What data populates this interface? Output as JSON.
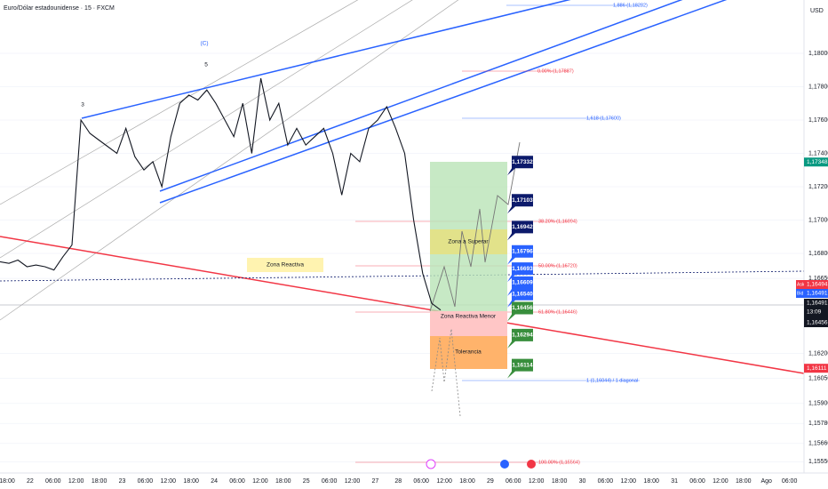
{
  "header": {
    "title": "Euro/Dólar estadounidense · 15 · FXCM",
    "currency": "USD"
  },
  "price_axis": {
    "ylim": [
      1.1836,
      1.1544
    ],
    "ticks": [
      {
        "value": 1.18,
        "label": "1,18000"
      },
      {
        "value": 1.178,
        "label": "1,17800"
      },
      {
        "value": 1.176,
        "label": "1,17600"
      },
      {
        "value": 1.174,
        "label": "1,17400"
      },
      {
        "value": 1.172,
        "label": "1,17200"
      },
      {
        "value": 1.17,
        "label": "1,17000"
      },
      {
        "value": 1.168,
        "label": "1,16800"
      },
      {
        "value": 1.1665,
        "label": "1,16650"
      },
      {
        "value": 1.162,
        "label": "1,16200"
      },
      {
        "value": 1.1605,
        "label": "1,16050"
      },
      {
        "value": 1.159,
        "label": "1,15900"
      },
      {
        "value": 1.1578,
        "label": "1,15780"
      },
      {
        "value": 1.1566,
        "label": "1,15660"
      },
      {
        "value": 1.1555,
        "label": "1,15550"
      }
    ]
  },
  "time_axis": {
    "labels": [
      "18:00",
      "22",
      "06:00",
      "12:00",
      "18:00",
      "23",
      "06:00",
      "12:00",
      "18:00",
      "24",
      "06:00",
      "12:00",
      "18:00",
      "25",
      "06:00",
      "12:00",
      "27",
      "28",
      "06:00",
      "12:00",
      "18:00",
      "29",
      "06:00",
      "12:00",
      "18:00",
      "30",
      "06:00",
      "12:00",
      "18:00",
      "31",
      "06:00",
      "12:00",
      "18:00",
      "Ago",
      "06:00"
    ]
  },
  "price_series": [
    1.1675,
    1.1674,
    1.1676,
    1.1672,
    1.1673,
    1.1672,
    1.167,
    1.1678,
    1.1685,
    1.176,
    1.1752,
    1.1748,
    1.1744,
    1.174,
    1.1755,
    1.1738,
    1.173,
    1.1735,
    1.172,
    1.175,
    1.177,
    1.1775,
    1.1772,
    1.1778,
    1.177,
    1.176,
    1.175,
    1.177,
    1.174,
    1.1785,
    1.176,
    1.177,
    1.1745,
    1.1755,
    1.1745,
    1.175,
    1.1755,
    1.174,
    1.1715,
    1.174,
    1.1735,
    1.1755,
    1.176,
    1.1768,
    1.1755,
    1.174,
    1.17,
    1.1668,
    1.165,
    1.1646
  ],
  "axis_tags": [
    {
      "label": "1,17348",
      "value": 1.17348,
      "color": "#089981"
    },
    {
      "label": "1,16111",
      "value": 1.16111,
      "color": "#f23645"
    }
  ],
  "quote": {
    "ask_label": "Ask",
    "ask": "1,16494",
    "bid_label": "Bid",
    "bid": "1,16491",
    "last": "1,16491",
    "countdown": "13:09",
    "low": "1,16456"
  },
  "level_tags": [
    {
      "label": "1,17332",
      "value": 1.17332,
      "color": "#0c1a6b"
    },
    {
      "label": "1,17103",
      "value": 1.17103,
      "color": "#0c1a6b"
    },
    {
      "label": "1,16942",
      "value": 1.16942,
      "color": "#0c1a6b"
    },
    {
      "label": "1,16796",
      "value": 1.16796,
      "color": "#2962ff"
    },
    {
      "label": "1,16693",
      "value": 1.16693,
      "color": "#2962ff"
    },
    {
      "label": "1,16609",
      "value": 1.16609,
      "color": "#2962ff"
    },
    {
      "label": "1,16540",
      "value": 1.1654,
      "color": "#2962ff"
    },
    {
      "label": "1,16456",
      "value": 1.16456,
      "color": "#388e3c"
    },
    {
      "label": "1,16294",
      "value": 1.16294,
      "color": "#388e3c"
    },
    {
      "label": "1,16114",
      "value": 1.16114,
      "color": "#388e3c"
    }
  ],
  "fib_labels": [
    "1,886 (1,18282)",
    "0.00% (1,17887)",
    "1,618 (1,17600)",
    "38.20% (1,16994)",
    "50.00% (1,16720)",
    "61.80% (1,16446)",
    "1 (1,16044) / 1 diagonal",
    "100.00% (1,15564)"
  ],
  "zones": [
    "Zona Reactiva",
    "Zona a Superar",
    "Zona Reactiva Menor",
    "Tolerancia"
  ],
  "waves": [
    "3",
    "(C)",
    "5"
  ]
}
